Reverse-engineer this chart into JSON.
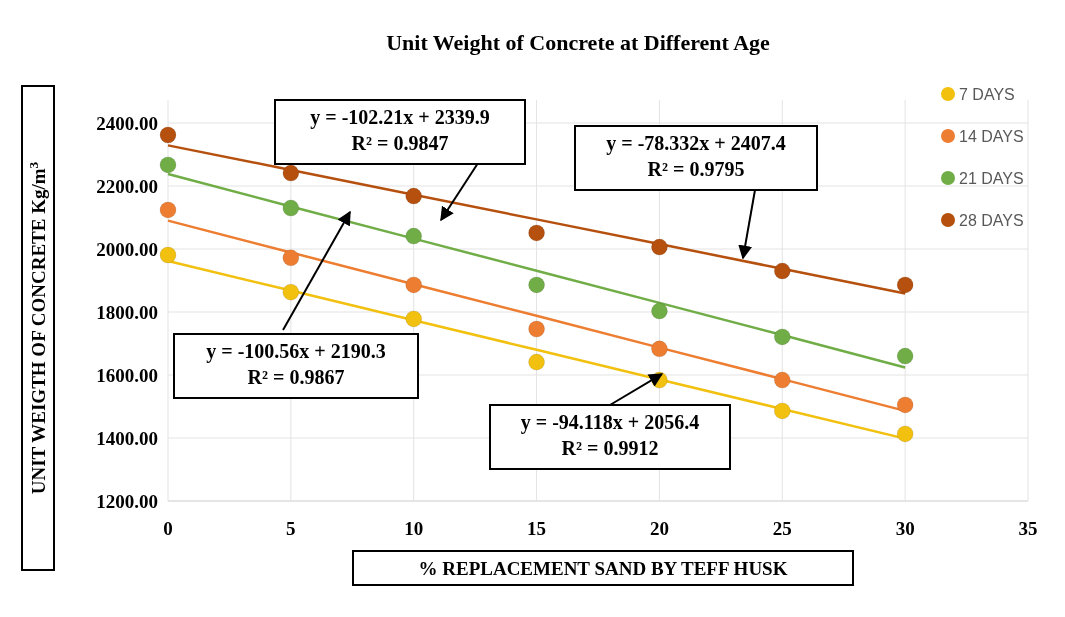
{
  "chart_data": {
    "type": "scatter",
    "title": "Unit Weight of Concrete at Different Age",
    "xlabel": "% REPLACEMENT SAND BY TEFF HUSK",
    "ylabel": "UNIT WEIGTH OF CONCRETE Kg/m$^{3}$",
    "x": [
      0,
      5,
      10,
      15,
      20,
      25,
      30
    ],
    "series": [
      {
        "name": "7 DAYS",
        "color": "#f2c00f",
        "values": [
          1981,
          1863,
          1778,
          1641,
          1584,
          1486,
          1413
        ]
      },
      {
        "name": "14 DAYS",
        "color": "#ed7d31",
        "values": [
          2124,
          1972,
          1886,
          1746,
          1683,
          1584,
          1505
        ]
      },
      {
        "name": "21 DAYS",
        "color": "#70ad47",
        "values": [
          2267,
          2130,
          2041,
          1886,
          1803,
          1721,
          1660
        ]
      },
      {
        "name": "28 DAYS",
        "color": "#b5500f",
        "values": [
          2362,
          2241,
          2168,
          2051,
          2006,
          1930,
          1886
        ]
      },
      {
        "type": "line",
        "marker": "none",
        "color": "#f2c00f",
        "values": [
          1962,
          1868,
          1774,
          1680,
          1586,
          1492,
          1398
        ]
      },
      {
        "type": "line",
        "marker": "none",
        "color": "#ed7d31",
        "values": [
          2090,
          1989,
          1888,
          1788,
          1687,
          1587,
          1486
        ]
      },
      {
        "type": "line",
        "marker": "none",
        "color": "#70ad47",
        "values": [
          2238,
          2135,
          2033,
          1931,
          1829,
          1727,
          1624
        ]
      },
      {
        "type": "line",
        "marker": "none",
        "color": "#b5500f",
        "values": [
          2329,
          2251,
          2172,
          2094,
          2016,
          1937,
          1859
        ]
      }
    ],
    "annotations": [
      "y = -102.21x + 2339.9\nR² = 0.9847",
      {
        "text": "y = -78.332x + 2407.4\nR² = 0.9795",
        "x": 23.4,
        "y": 1971
      },
      "y = -100.56x + 2190.3\nR² = 0.9867",
      {
        "text": "y = -94.118x + 2056.4\nR² = 0.9912",
        "x": 20.1,
        "y": 1603
      }
    ],
    "xlim": [
      0,
      35
    ],
    "xticks": [
      0,
      5,
      10,
      15,
      20,
      25,
      30,
      35
    ],
    "ylim": [
      1200,
      2400
    ],
    "yticks": [
      {
        "value": 1200,
        "label": "1200.00"
      },
      {
        "value": 1400,
        "label": "1400.00"
      },
      {
        "value": 1600,
        "label": "1600.00"
      },
      {
        "value": 1800,
        "label": "1800.00"
      },
      {
        "value": 2000,
        "label": "2000.00"
      },
      {
        "value": 2200,
        "label": "2200.00"
      },
      {
        "value": 2400,
        "label": "2400.00"
      }
    ],
    "grid": true,
    "legend": "top right",
    "marker": "circle",
    "line_style": "solid"
  }
}
